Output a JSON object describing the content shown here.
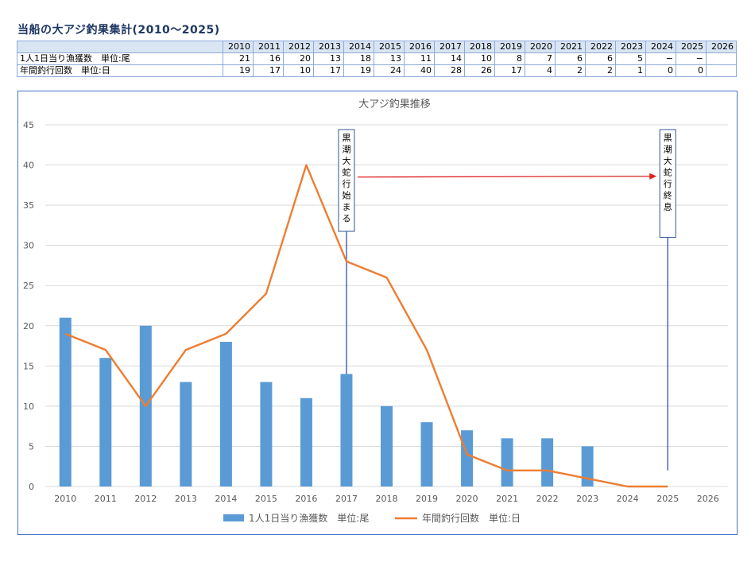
{
  "page_title": "当船の大アジ釣果集計(2010〜2025)",
  "table": {
    "headers": [
      "2010",
      "2011",
      "2012",
      "2013",
      "2014",
      "2015",
      "2016",
      "2017",
      "2018",
      "2019",
      "2020",
      "2021",
      "2022",
      "2023",
      "2024",
      "2025",
      "2026"
    ],
    "rows": [
      {
        "label": "1人1日当り漁獲数　単位:尾",
        "values": [
          "21",
          "16",
          "20",
          "13",
          "18",
          "13",
          "11",
          "14",
          "10",
          "8",
          "7",
          "6",
          "6",
          "5",
          "−",
          "−",
          ""
        ]
      },
      {
        "label": "年間釣行回数　単位:日",
        "values": [
          "19",
          "17",
          "10",
          "17",
          "19",
          "24",
          "40",
          "28",
          "26",
          "17",
          "4",
          "2",
          "2",
          "1",
          "0",
          "0",
          ""
        ]
      }
    ]
  },
  "chart_data": {
    "type": "bar",
    "title": "大アジ釣果推移",
    "categories": [
      "2010",
      "2011",
      "2012",
      "2013",
      "2014",
      "2015",
      "2016",
      "2017",
      "2018",
      "2019",
      "2020",
      "2021",
      "2022",
      "2023",
      "2024",
      "2025",
      "2026"
    ],
    "ylim": [
      0,
      45
    ],
    "yticks": [
      0,
      5,
      10,
      15,
      20,
      25,
      30,
      35,
      40,
      45
    ],
    "grid": true,
    "legend_position": "bottom",
    "series": [
      {
        "name": "1人1日当り漁獲数　単位:尾",
        "type": "bar",
        "color": "#5b9bd5",
        "values": [
          21,
          16,
          20,
          13,
          18,
          13,
          11,
          14,
          10,
          8,
          7,
          6,
          6,
          5,
          null,
          null,
          null
        ]
      },
      {
        "name": "年間釣行回数　単位:日",
        "type": "line",
        "color": "#ed7d31",
        "values": [
          19,
          17,
          10,
          17,
          19,
          24,
          40,
          28,
          26,
          17,
          4,
          2,
          2,
          1,
          0,
          0,
          null
        ]
      }
    ],
    "annotations": [
      {
        "text": "黒潮大蛇行始まる",
        "category": "2017",
        "line_color": "#2f4fb4",
        "to_value": 14
      },
      {
        "text": "黒潮大蛇行終息",
        "category": "2025",
        "line_color": "#2f4fb4",
        "to_value": 2
      }
    ],
    "arrow": {
      "from": "2017",
      "to": "2025",
      "value": 38.5,
      "color": "#e02020"
    }
  }
}
